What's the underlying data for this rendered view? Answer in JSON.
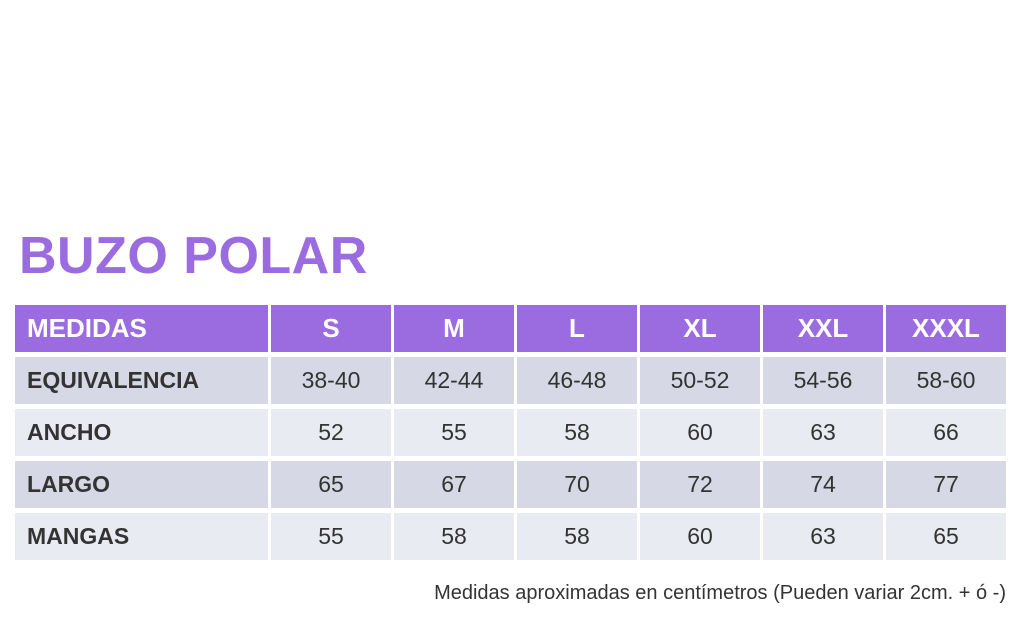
{
  "title": "BUZO POLAR",
  "table": {
    "header": [
      "MEDIDAS",
      "S",
      "M",
      "L",
      "XL",
      "XXL",
      "XXXL"
    ],
    "rows": [
      [
        "EQUIVALENCIA",
        "38-40",
        "42-44",
        "46-48",
        "50-52",
        "54-56",
        "58-60"
      ],
      [
        "ANCHO",
        52,
        55,
        58,
        60,
        63,
        66
      ],
      [
        "LARGO",
        65,
        67,
        70,
        72,
        74,
        77
      ],
      [
        "MANGAS",
        55,
        58,
        58,
        60,
        63,
        65
      ]
    ]
  },
  "note": "Medidas aproximadas en centímetros (Pueden variar 2cm. + ó -)"
}
